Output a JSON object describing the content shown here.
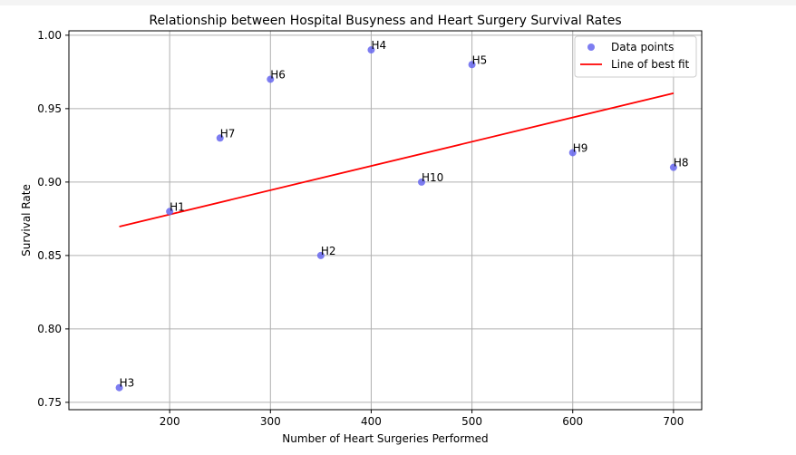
{
  "chart_data": {
    "type": "scatter",
    "title": "Relationship between Hospital Busyness and Heart Surgery Survival Rates",
    "xlabel": "Number of Heart Surgeries Performed",
    "ylabel": "Survival Rate",
    "xlim": [
      100,
      728
    ],
    "ylim": [
      0.745,
      1.003
    ],
    "xticks": [
      200,
      300,
      400,
      500,
      600,
      700
    ],
    "yticks": [
      0.75,
      0.8,
      0.85,
      0.9,
      0.95,
      1.0
    ],
    "ytick_labels": [
      "0.75",
      "0.80",
      "0.85",
      "0.90",
      "0.95",
      "1.00"
    ],
    "grid": true,
    "legend_position": "top-right",
    "points": [
      {
        "label": "H1",
        "x": 200,
        "y": 0.88
      },
      {
        "label": "H2",
        "x": 350,
        "y": 0.85
      },
      {
        "label": "H3",
        "x": 150,
        "y": 0.76
      },
      {
        "label": "H4",
        "x": 400,
        "y": 0.99
      },
      {
        "label": "H5",
        "x": 500,
        "y": 0.98
      },
      {
        "label": "H6",
        "x": 300,
        "y": 0.97
      },
      {
        "label": "H7",
        "x": 250,
        "y": 0.93
      },
      {
        "label": "H8",
        "x": 700,
        "y": 0.91
      },
      {
        "label": "H9",
        "x": 600,
        "y": 0.92
      },
      {
        "label": "H10",
        "x": 450,
        "y": 0.9
      }
    ],
    "best_fit": {
      "x": [
        150,
        700
      ],
      "y": [
        0.8697,
        0.9605
      ]
    },
    "series": [
      {
        "name": "Data points",
        "color": "#6666ee"
      },
      {
        "name": "Line of best fit",
        "color": "#ff0000"
      }
    ]
  }
}
